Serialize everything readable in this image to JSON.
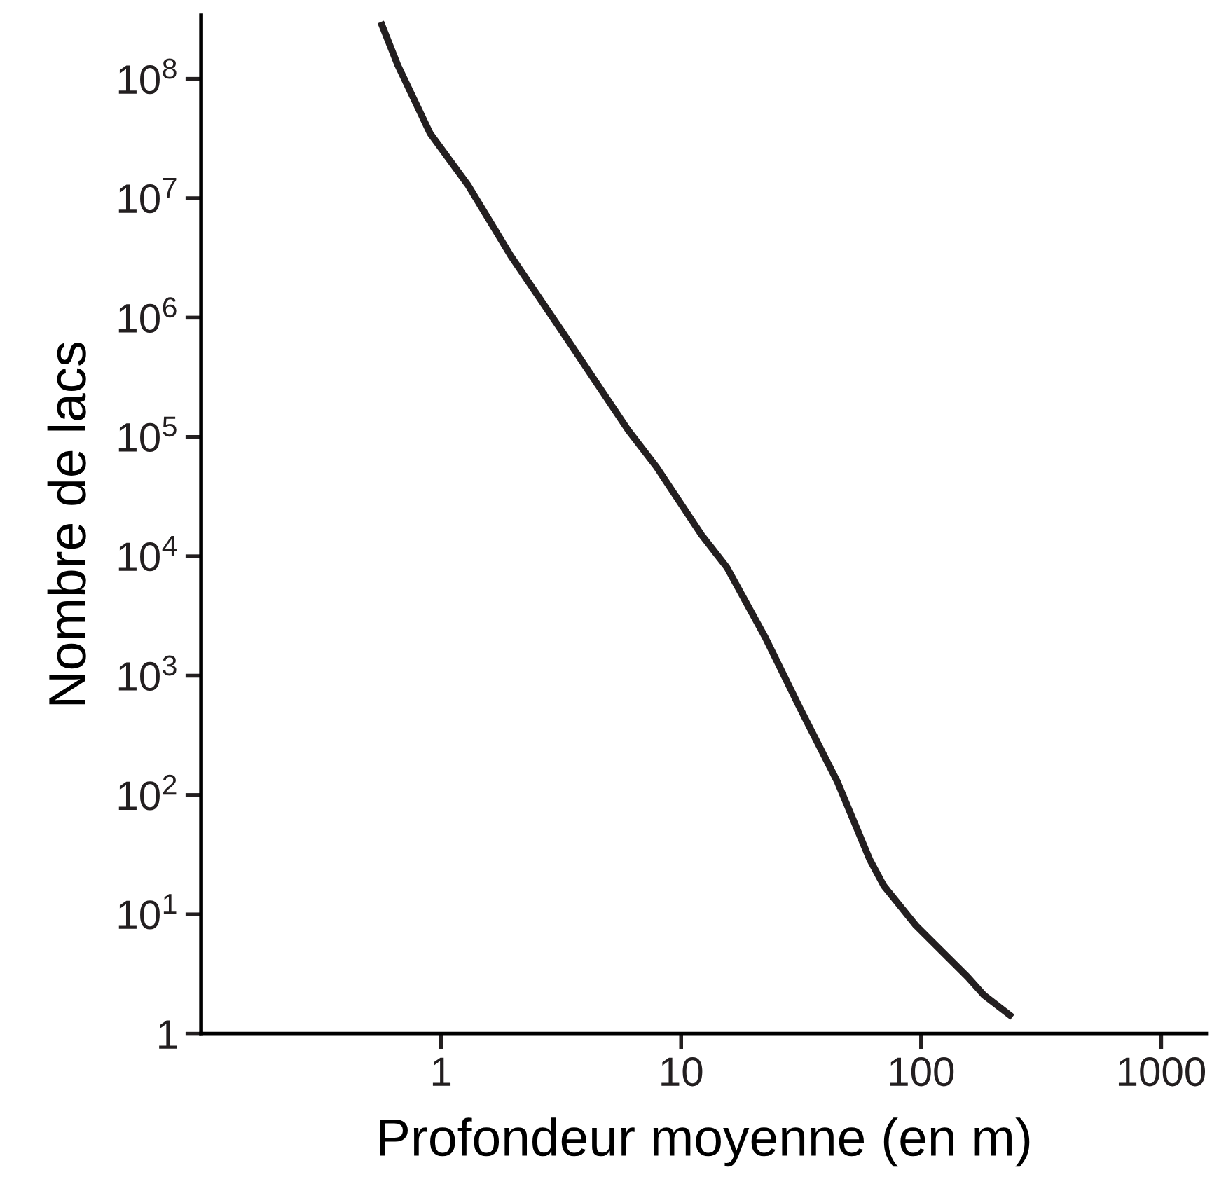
{
  "chart_data": {
    "type": "line",
    "xlabel": "Profondeur moyenne (en m)",
    "ylabel": "Nombre de lacs",
    "log": "xy",
    "x": [
      0.56,
      0.66,
      0.9,
      1.29,
      1.95,
      3.2,
      6.0,
      7.9,
      12.2,
      15.5,
      22.4,
      31.2,
      44.8,
      61,
      70,
      95,
      156,
      183,
      240
    ],
    "series": [
      {
        "color": "#231f20",
        "values": [
          300000000.0,
          130000000.0,
          35000000.0,
          13000000.0,
          3300000.0,
          760000.0,
          115000.0,
          56000.0,
          15000.0,
          8100.0,
          2100.0,
          540,
          129,
          29,
          17.3,
          8.1,
          3.0,
          2.1,
          1.38
        ]
      }
    ],
    "xlim": [
      0.1,
      1550
    ],
    "ylim": [
      1,
      340000000.0
    ],
    "xticks": [
      1,
      10,
      100,
      1000
    ],
    "yticks": [
      1,
      {
        "value": 10,
        "label": "10$^{1}$"
      },
      {
        "value": 100,
        "label": "10$^{2}$"
      },
      {
        "value": 1000,
        "label": "10$^{3}$"
      },
      {
        "value": 10000,
        "label": "10$^{4}$"
      },
      {
        "value": 100000,
        "label": "10$^{5}$"
      },
      {
        "value": 1000000,
        "label": "10$^{6}$"
      },
      {
        "value": 10000000,
        "label": "10$^{7}$"
      },
      {
        "value": 100000000,
        "label": "10$^{8}$"
      }
    ],
    "grid": false,
    "line_style": "solid",
    "marker": "none"
  }
}
